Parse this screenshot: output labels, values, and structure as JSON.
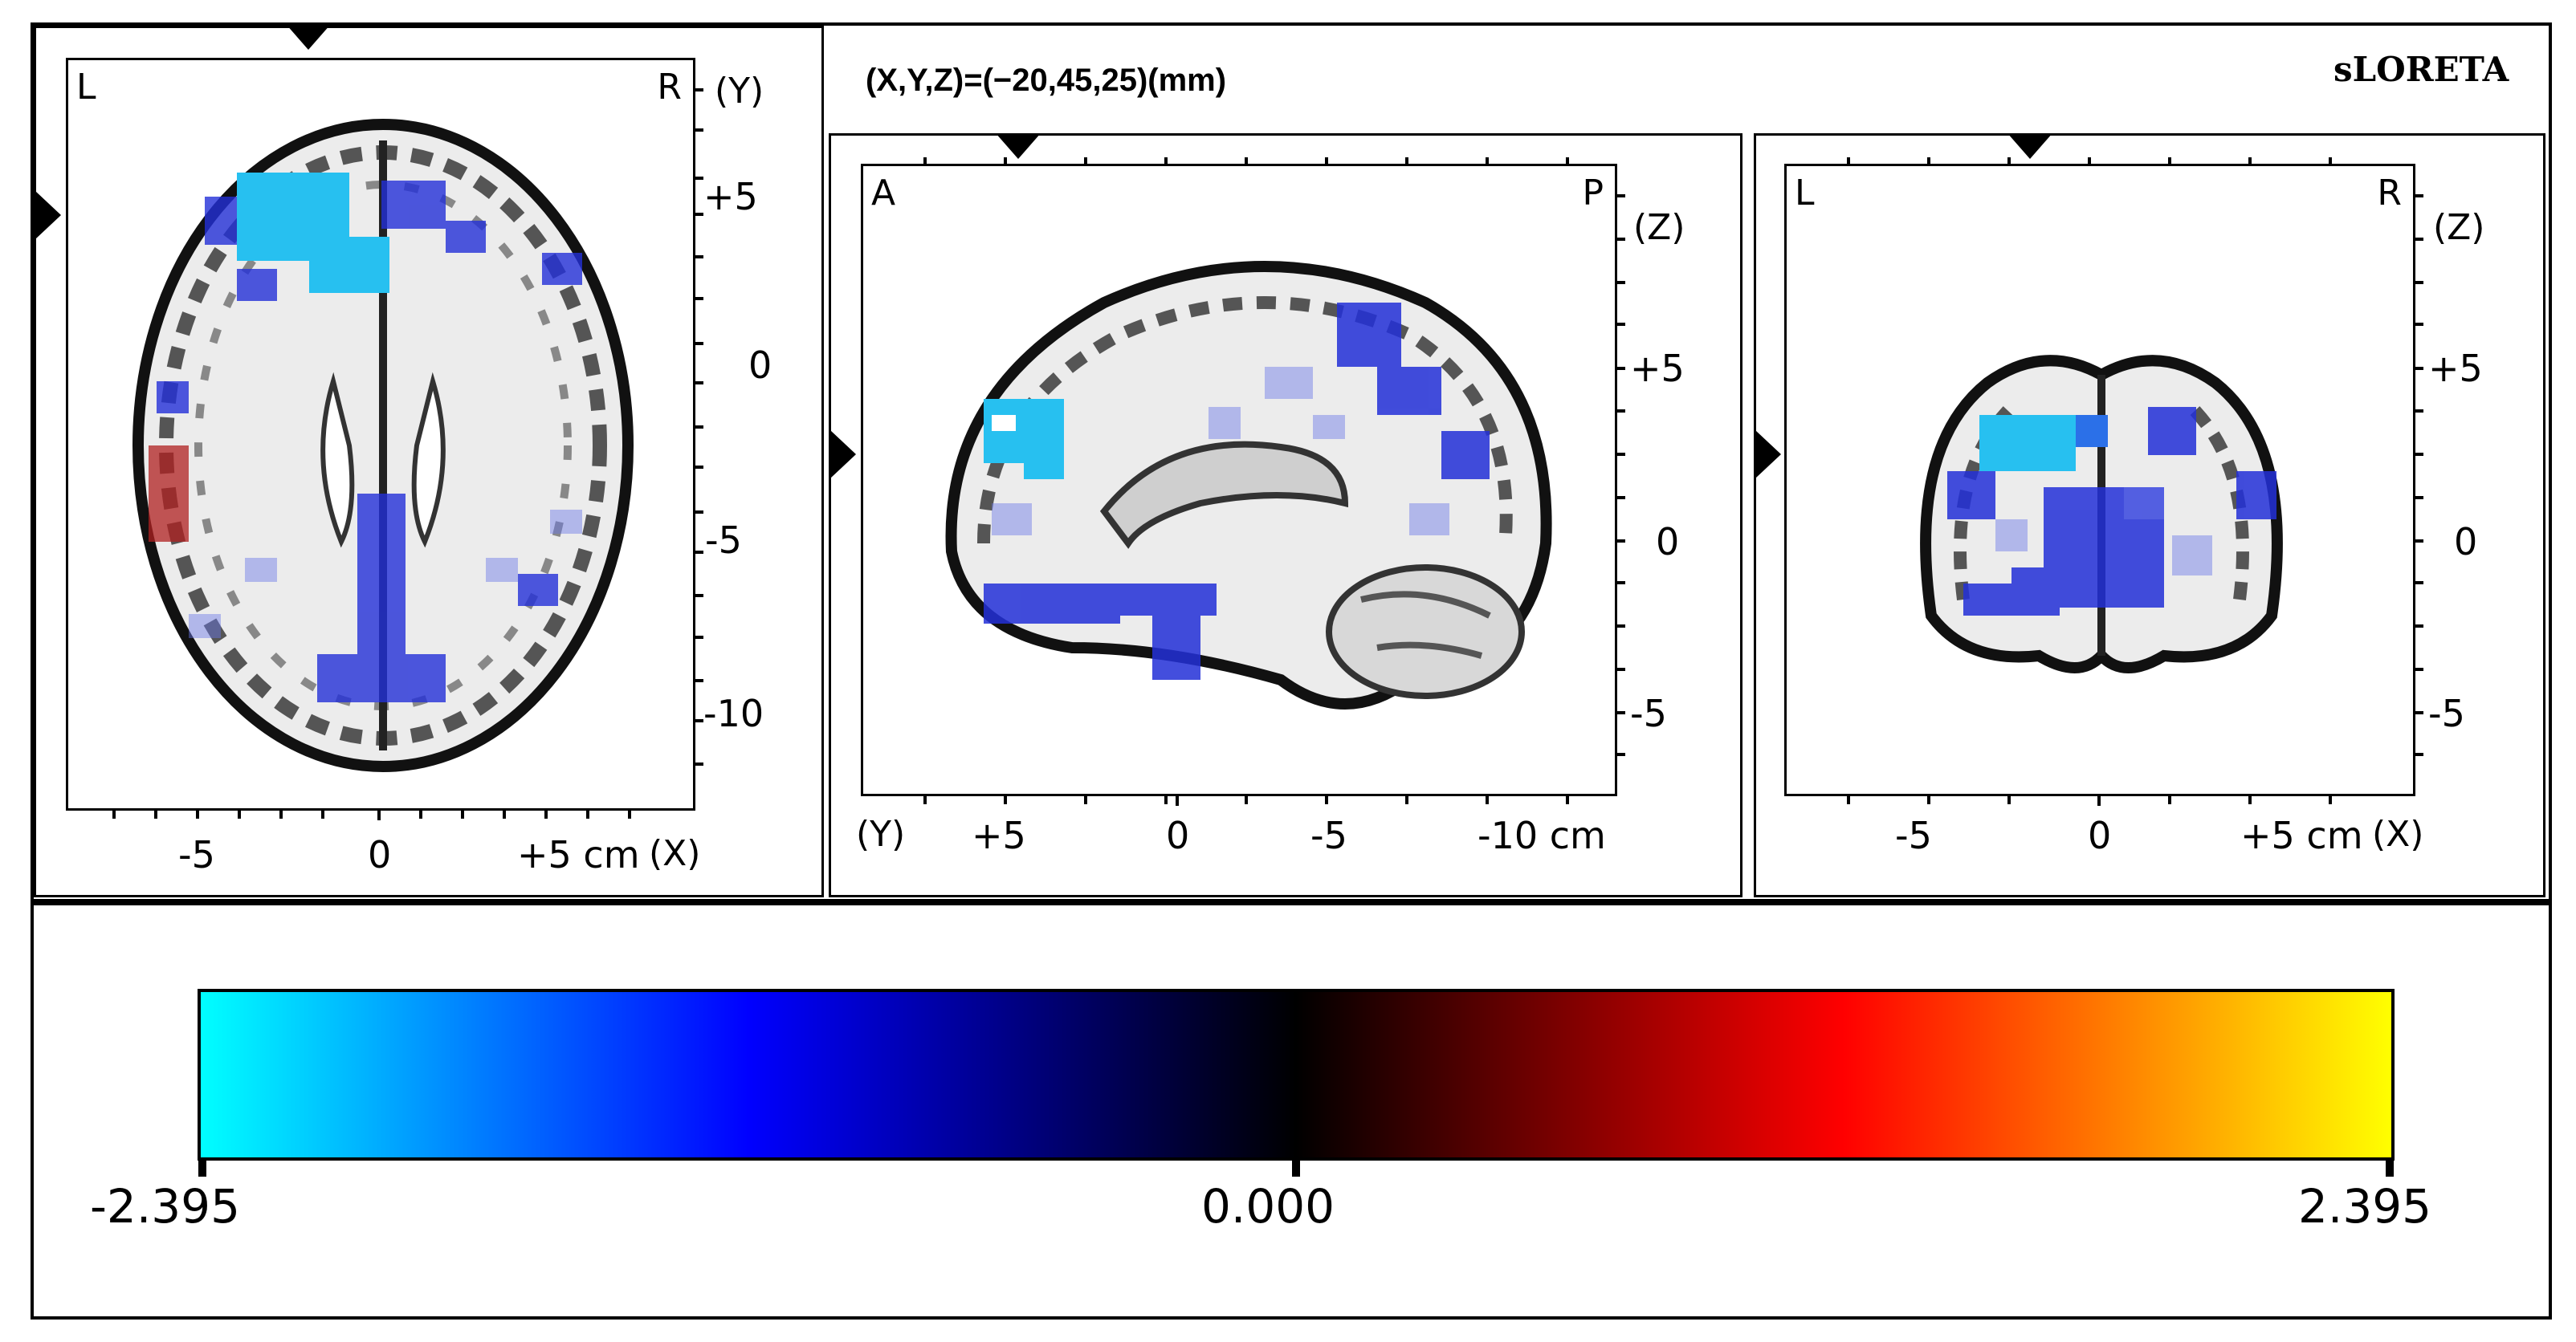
{
  "header": {
    "coordinates": "(X,Y,Z)=(−20,45,25)(mm)",
    "brand": "sLORETA"
  },
  "axial": {
    "corner_left": "L",
    "corner_right": "R",
    "axis_name": "(Y)",
    "y_ticks": [
      "+5",
      "0",
      "-5",
      "-10"
    ],
    "x_ticks": [
      "-5",
      "0",
      "+5 cm"
    ],
    "x_axis_name": "(X)"
  },
  "sagittal": {
    "corner_left": "A",
    "corner_right": "P",
    "axis_name": "(Z)",
    "z_ticks": [
      "+5",
      "0",
      "-5"
    ],
    "y_axis_name": "(Y)",
    "y_ticks": [
      "+5",
      "0",
      "-5",
      "-10 cm"
    ]
  },
  "coronal": {
    "corner_left": "L",
    "corner_right": "R",
    "axis_name": "(Z)",
    "z_ticks": [
      "+5",
      "0",
      "-5"
    ],
    "x_ticks": [
      "-5",
      "0",
      "+5 cm"
    ],
    "x_axis_name": "(X)"
  },
  "colorbar": {
    "min_label": "-2.395",
    "mid_label": "0.000",
    "max_label": "2.395",
    "stops": [
      "#00ffff",
      "#0000ff",
      "#000000",
      "#ff0000",
      "#ffff00"
    ]
  }
}
